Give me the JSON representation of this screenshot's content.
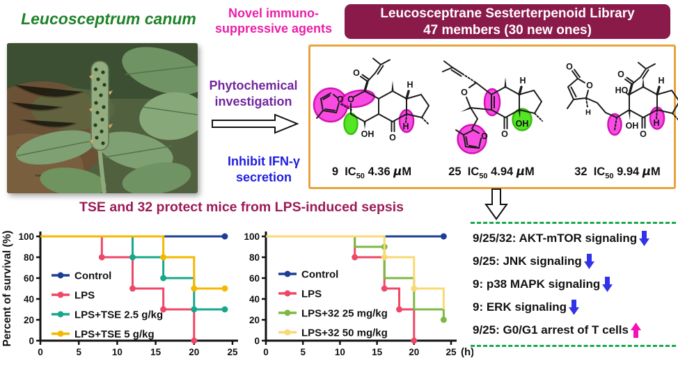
{
  "colors": {
    "plant_title_green": "#1e8228",
    "novel_magenta": "#ea1fa8",
    "banner_maroon": "#8a1a4a",
    "box_border_orange": "#e8a43c",
    "phyto_purple": "#70269e",
    "inhibit_blue": "#1d1de0",
    "sepsis_maroon": "#9c1a56",
    "dashed_green": "#17a94d",
    "pathway_down_arrow_blue": "#3232e8",
    "pathway_up_arrow_magenta": "#f411b8",
    "highlight_magenta": "#f93ce0",
    "highlight_green": "#46e312"
  },
  "header": {
    "plant_name": "Leucosceptrum canum",
    "novel_line1": "Novel immuno-",
    "novel_line2": "suppressive agents",
    "library_line1": "Leucosceptrane Sesterterpenoid Library",
    "library_line2": "47 members (30 new ones)"
  },
  "process": {
    "phyto_line1": "Phytochemical",
    "phyto_line2": "investigation",
    "inhibit_line1": "Inhibit IFN-γ",
    "inhibit_line2": "secretion"
  },
  "compounds": [
    {
      "number": "9",
      "ic50_prefix": "IC",
      "ic50_sub": "50",
      "ic50_value": "4.36",
      "unit_mu": "μ",
      "unit_M": "M",
      "atom_labels": {
        "o_furan": "O",
        "o_pyran": "O",
        "o_acyl": "O",
        "h_top": "H",
        "oh": "OH",
        "o_ketone": "O",
        "h_bottom": "H"
      }
    },
    {
      "number": "25",
      "ic50_prefix": "IC",
      "ic50_sub": "50",
      "ic50_value": "4.94",
      "unit_mu": "μ",
      "unit_M": "M",
      "atom_labels": {
        "o_thf": "O",
        "o_furan": "O",
        "h_top": "H",
        "oh": "OH",
        "o_ketone": "O"
      }
    },
    {
      "number": "32",
      "ic50_prefix": "IC",
      "ic50_sub": "50",
      "ic50_value": "9.94",
      "unit_mu": "μ",
      "unit_M": "M",
      "atom_labels": {
        "o_ring": "O",
        "o_exo": "O",
        "h_chain": "H",
        "ho": "HO",
        "o_acyl": "O",
        "h_top": "H",
        "oh": "OH",
        "o_ketone": "O",
        "h_bottom": "H"
      }
    }
  ],
  "sepsis_title": "TSE and 32 protect mice from LPS-induced sepsis",
  "chart_data": [
    {
      "type": "line",
      "subtype": "kaplan-meier-step",
      "title": "",
      "xlabel": "",
      "ylabel": "Percent of survival (%)",
      "xlim": [
        0,
        25
      ],
      "ylim": [
        0,
        100
      ],
      "xticks": [
        0,
        5,
        10,
        15,
        20,
        25
      ],
      "yticks": [
        0,
        20,
        40,
        60,
        80,
        100
      ],
      "grid": false,
      "legend_position": "inside-left",
      "series": [
        {
          "name": "Control",
          "color": "#1c3e96",
          "points": [
            [
              0,
              100
            ],
            [
              24,
              100
            ]
          ],
          "dots": [
            [
              24,
              100
            ]
          ]
        },
        {
          "name": "LPS",
          "color": "#ef4767",
          "points": [
            [
              0,
              100
            ],
            [
              8,
              100
            ],
            [
              8,
              80
            ],
            [
              12,
              80
            ],
            [
              12,
              50
            ],
            [
              16,
              50
            ],
            [
              16,
              30
            ],
            [
              20,
              30
            ],
            [
              20,
              0
            ]
          ],
          "dots": [
            [
              8,
              80
            ],
            [
              12,
              50
            ],
            [
              16,
              30
            ],
            [
              20,
              0
            ]
          ]
        },
        {
          "name": "LPS+TSE 2.5 g/kg",
          "color": "#18a78b",
          "points": [
            [
              0,
              100
            ],
            [
              12,
              100
            ],
            [
              12,
              80
            ],
            [
              16,
              80
            ],
            [
              16,
              60
            ],
            [
              20,
              60
            ],
            [
              20,
              30
            ],
            [
              24,
              30
            ]
          ],
          "dots": [
            [
              12,
              80
            ],
            [
              16,
              60
            ],
            [
              20,
              30
            ],
            [
              24,
              30
            ]
          ]
        },
        {
          "name": "LPS+TSE 5 g/kg",
          "color": "#f4b801",
          "points": [
            [
              0,
              100
            ],
            [
              16,
              100
            ],
            [
              16,
              80
            ],
            [
              20,
              80
            ],
            [
              20,
              50
            ],
            [
              24,
              50
            ]
          ],
          "dots": [
            [
              16,
              80
            ],
            [
              20,
              50
            ],
            [
              24,
              50
            ]
          ]
        }
      ]
    },
    {
      "type": "line",
      "subtype": "kaplan-meier-step",
      "title": "",
      "xlabel": "",
      "ylabel": "",
      "x_unit": "(h)",
      "xlim": [
        0,
        25
      ],
      "ylim": [
        0,
        100
      ],
      "xticks": [
        0,
        5,
        10,
        15,
        20,
        25
      ],
      "yticks": [
        0,
        20,
        40,
        60,
        80,
        100
      ],
      "grid": false,
      "legend_position": "inside-left",
      "series": [
        {
          "name": "Control",
          "color": "#1c3e96",
          "points": [
            [
              0,
              100
            ],
            [
              24,
              100
            ]
          ],
          "dots": [
            [
              24,
              100
            ]
          ]
        },
        {
          "name": "LPS",
          "color": "#ef4767",
          "points": [
            [
              0,
              100
            ],
            [
              12,
              100
            ],
            [
              12,
              80
            ],
            [
              16,
              80
            ],
            [
              16,
              50
            ],
            [
              18,
              50
            ],
            [
              18,
              30
            ],
            [
              20,
              30
            ],
            [
              20,
              0
            ]
          ],
          "dots": [
            [
              12,
              80
            ],
            [
              16,
              50
            ],
            [
              18,
              30
            ],
            [
              20,
              0
            ]
          ]
        },
        {
          "name": "LPS+32 25 mg/kg",
          "color": "#7cb942",
          "points": [
            [
              0,
              100
            ],
            [
              12,
              100
            ],
            [
              12,
              90
            ],
            [
              16,
              90
            ],
            [
              16,
              60
            ],
            [
              20,
              60
            ],
            [
              20,
              30
            ],
            [
              24,
              30
            ],
            [
              24,
              20
            ]
          ],
          "dots": [
            [
              16,
              90
            ],
            [
              24,
              20
            ]
          ]
        },
        {
          "name": "LPS+32 50 mg/kg",
          "color": "#f8d974",
          "points": [
            [
              0,
              100
            ],
            [
              16,
              100
            ],
            [
              16,
              80
            ],
            [
              20,
              80
            ],
            [
              20,
              50
            ],
            [
              24,
              50
            ],
            [
              24,
              30
            ]
          ],
          "dots": [
            [
              16,
              80
            ],
            [
              20,
              50
            ]
          ]
        }
      ]
    }
  ],
  "pathways": [
    {
      "text": "9/25/32: AKT-mTOR signaling",
      "direction": "down"
    },
    {
      "text": "9/25: JNK signaling",
      "direction": "down"
    },
    {
      "text": "9: p38 MAPK signaling",
      "direction": "down"
    },
    {
      "text": "9: ERK signaling",
      "direction": "down"
    },
    {
      "text": "9/25: G0/G1 arrest of T cells",
      "direction": "up"
    }
  ]
}
